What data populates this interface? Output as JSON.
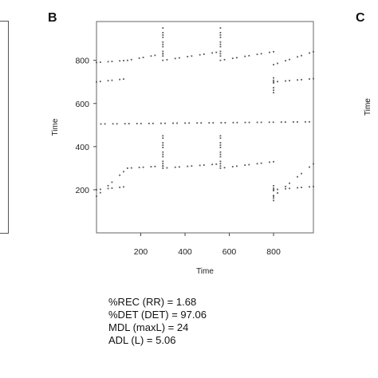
{
  "panels": {
    "left_letter": "",
    "main_letter": "B",
    "right_letter": "C"
  },
  "chart_data": {
    "type": "scatter",
    "subtype": "recurrence-plot",
    "title": "",
    "xlabel": "Time",
    "ylabel": "Time",
    "xlim": [
      0,
      980
    ],
    "ylim": [
      0,
      980
    ],
    "xticks": [
      200,
      400,
      600,
      800
    ],
    "yticks": [
      200,
      400,
      600,
      800
    ],
    "grid": false,
    "point_color": "#555555",
    "segments": [
      {
        "x": [
          0,
          140
        ],
        "y": [
          170,
          300
        ]
      },
      {
        "x": [
          140,
          300
        ],
        "y": [
          300,
          310
        ]
      },
      {
        "x": [
          300,
          560
        ],
        "y": [
          300,
          320
        ]
      },
      {
        "x": [
          560,
          800
        ],
        "y": [
          300,
          330
        ]
      },
      {
        "x": [
          800,
          980
        ],
        "y": [
          170,
          320
        ]
      },
      {
        "x": [
          0,
          140
        ],
        "y": [
          790,
          800
        ]
      },
      {
        "x": [
          140,
          300
        ],
        "y": [
          800,
          830
        ]
      },
      {
        "x": [
          300,
          560
        ],
        "y": [
          800,
          840
        ]
      },
      {
        "x": [
          560,
          800
        ],
        "y": [
          800,
          840
        ]
      },
      {
        "x": [
          800,
          980
        ],
        "y": [
          780,
          840
        ]
      },
      {
        "x": [
          0,
          140
        ],
        "y": [
          200,
          215
        ]
      },
      {
        "x": [
          0,
          140
        ],
        "y": [
          700,
          715
        ]
      },
      {
        "x": [
          800,
          980
        ],
        "y": [
          200,
          215
        ]
      },
      {
        "x": [
          800,
          980
        ],
        "y": [
          700,
          715
        ]
      },
      {
        "x": [
          20,
          980
        ],
        "y": [
          505,
          515
        ]
      }
    ],
    "verticals": [
      {
        "x": 300,
        "y": [
          820,
          950
        ]
      },
      {
        "x": 560,
        "y": [
          820,
          950
        ]
      },
      {
        "x": 300,
        "y": [
          310,
          450
        ]
      },
      {
        "x": 560,
        "y": [
          310,
          450
        ]
      },
      {
        "x": 800,
        "y": [
          150,
          230
        ]
      },
      {
        "x": 800,
        "y": [
          650,
          730
        ]
      }
    ]
  },
  "metrics": {
    "rec": "%REC (RR) = 1.68",
    "det": "%DET (DET) = 97.06",
    "mdl": "MDL (maxL) = 24",
    "adl": "ADL (L) = 5.06"
  }
}
